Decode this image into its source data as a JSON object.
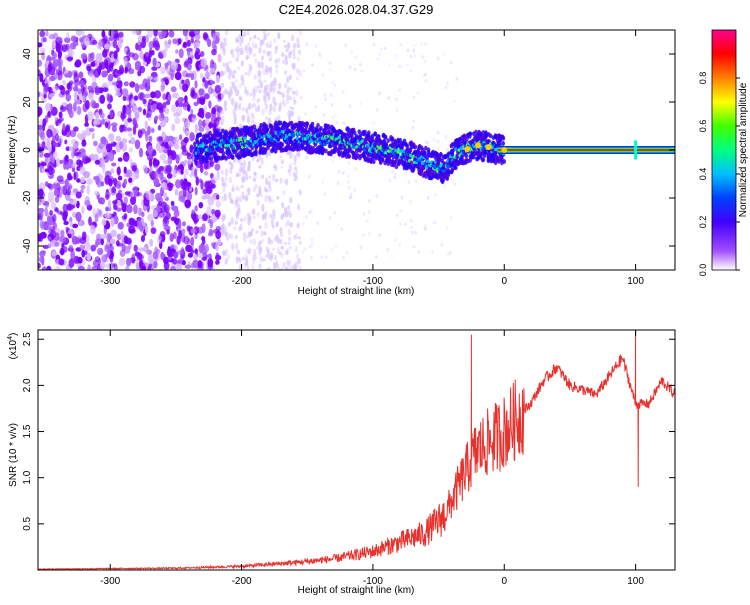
{
  "title": "C2E4.2026.028.04.37.G29",
  "chart_data": [
    {
      "type": "heatmap",
      "xlabel": "Height of straight line (km)",
      "ylabel": "Frequency (Hz)",
      "xlim": [
        -355,
        130
      ],
      "ylim": [
        -50,
        50
      ],
      "xticks": [
        -300,
        -200,
        -100,
        0,
        100
      ],
      "yticks": [
        -40,
        -20,
        0,
        20,
        40
      ],
      "colorbar": {
        "label": "Normalized spectral amplitude",
        "range": [
          0,
          1
        ],
        "ticks": [
          "0.0",
          "0.2",
          "0.4",
          "0.6",
          "0.8"
        ],
        "colors": [
          "#ffffff",
          "#8a00ff",
          "#0000ff",
          "#00ffff",
          "#00ff00",
          "#ffff00",
          "#ff8000",
          "#ff0000",
          "#ff00a0"
        ]
      },
      "ridge": {
        "x": [
          -235,
          -220,
          -200,
          -180,
          -165,
          -150,
          -130,
          -110,
          -90,
          -70,
          -55,
          -45,
          -38,
          -30,
          -20,
          -10,
          0,
          50,
          100,
          130
        ],
        "y": [
          0,
          2,
          3,
          5,
          6,
          5,
          4,
          2,
          0,
          -3,
          -6,
          -8,
          -2,
          0,
          2,
          1,
          0,
          0,
          0,
          0
        ]
      }
    },
    {
      "type": "line",
      "xlabel": "Height of straight line (km)",
      "ylabel": "SNR (10 * v/v)",
      "yscale_label": "(x10",
      "yscale_exp": "4",
      "xlim": [
        -355,
        130
      ],
      "ylim": [
        0,
        2.6
      ],
      "xticks": [
        -300,
        -200,
        -100,
        0,
        100
      ],
      "yticks": [
        0.5,
        1.0,
        1.5,
        2.0,
        2.5
      ],
      "envelope": {
        "x": [
          -355,
          -250,
          -200,
          -160,
          -130,
          -100,
          -80,
          -60,
          -45,
          -35,
          -28,
          -25,
          -20,
          -10,
          0,
          10,
          20,
          30,
          40,
          50,
          60,
          70,
          80,
          90,
          100,
          110,
          120,
          130
        ],
        "y": [
          0.01,
          0.02,
          0.04,
          0.08,
          0.12,
          0.2,
          0.3,
          0.4,
          0.6,
          0.9,
          1.1,
          1.2,
          1.3,
          1.4,
          1.5,
          1.65,
          1.8,
          2.05,
          2.2,
          2.0,
          1.95,
          1.9,
          2.1,
          2.3,
          1.8,
          1.8,
          2.05,
          1.9
        ]
      },
      "peaks": [
        {
          "x": -25,
          "y": 2.55
        },
        {
          "x": 100,
          "y": 2.6
        },
        {
          "x": 102,
          "y": 0.9
        }
      ]
    }
  ]
}
